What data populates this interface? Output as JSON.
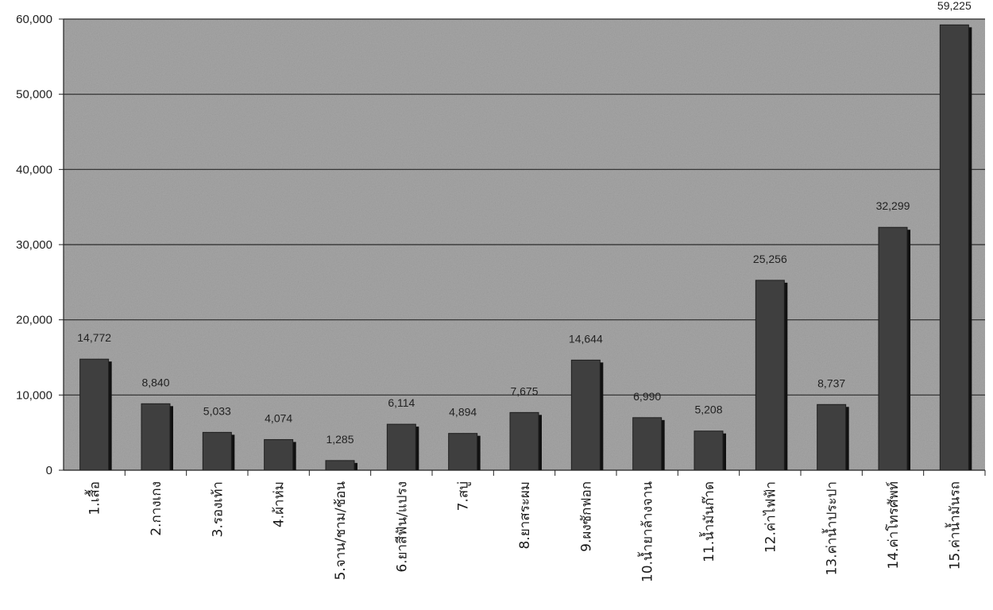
{
  "chart_data": {
    "type": "bar",
    "categories": [
      "1.เสื้อ",
      "2.กางเกง",
      "3.รองเท้า",
      "4.ผ้าห่ม",
      "5.จาน/ชาม/ช้อน",
      "6.ยาสีฟัน/แปรง",
      "7.สบู่",
      "8.ยาสระผม",
      "9.ผงซักฟอก",
      "10.น้ำยาล้างจาน",
      "11.น้ำมันก๊าด",
      "12.ค่าไฟฟ้า",
      "13.ค่าน้ำประปา",
      "14.ค่าโทรศัพท์",
      "15.ค่าน้ำมันรถ"
    ],
    "values": [
      14772,
      8840,
      5033,
      4074,
      1285,
      6114,
      4894,
      7675,
      14644,
      6990,
      5208,
      25256,
      8737,
      32299,
      59225
    ],
    "value_labels": [
      "14,772",
      "8,840",
      "5,033",
      "4,074",
      "1,285",
      "6,114",
      "4,894",
      "7,675",
      "14,644",
      "6,990",
      "5,208",
      "25,256",
      "8,737",
      "32,299",
      "59,225"
    ],
    "y_ticks": [
      "0",
      "10,000",
      "20,000",
      "30,000",
      "40,000",
      "50,000",
      "60,000"
    ],
    "ylim": [
      0,
      60000
    ],
    "grid": true,
    "legend": false,
    "title": "",
    "xlabel": "",
    "ylabel": "",
    "colors": {
      "plot_background": "#a6a6a6",
      "bar": "#3f3f3f",
      "bar_shadow": "#111111",
      "gridline": "#2a2a2a"
    }
  }
}
